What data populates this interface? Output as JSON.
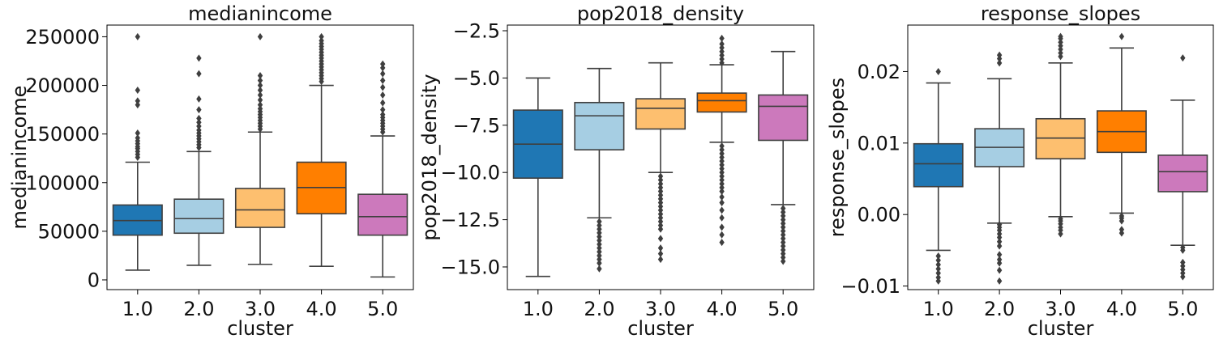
{
  "chart_data": [
    {
      "type": "box",
      "title": "medianincome",
      "xlabel": "cluster",
      "ylabel": "medianincome",
      "categories": [
        "1.0",
        "2.0",
        "3.0",
        "4.0",
        "5.0"
      ],
      "colors": [
        "#1f77b4",
        "#a6cee3",
        "#fdbf6f",
        "#ff7f00",
        "#cc79bc"
      ],
      "ylim": [
        -10000,
        262000
      ],
      "yticks": [
        0,
        50000,
        100000,
        150000,
        200000,
        250000
      ],
      "ytick_labels": [
        "0",
        "50000",
        "100000",
        "150000",
        "200000",
        "250000"
      ],
      "boxes": [
        {
          "whislo": 10000,
          "q1": 46000,
          "median": 61000,
          "q3": 77000,
          "whishi": 121000,
          "fliers": [
            126000,
            129000,
            132000,
            135000,
            137000,
            140000,
            143000,
            146000,
            151000,
            180000,
            184000,
            195000,
            250000
          ]
        },
        {
          "whislo": 15000,
          "q1": 48000,
          "median": 63000,
          "q3": 83000,
          "whishi": 132000,
          "fliers": [
            136000,
            139000,
            142000,
            145000,
            148000,
            151000,
            154000,
            158000,
            162000,
            166000,
            175000,
            186000,
            212000,
            228000
          ]
        },
        {
          "whislo": 16000,
          "q1": 54000,
          "median": 72000,
          "q3": 94000,
          "whishi": 152000,
          "fliers": [
            155000,
            158000,
            161000,
            164000,
            167000,
            170000,
            173000,
            176000,
            180000,
            185000,
            190000,
            195000,
            200000,
            205000,
            210000,
            250000
          ]
        },
        {
          "whislo": 14000,
          "q1": 68000,
          "median": 95000,
          "q3": 121000,
          "whishi": 200000,
          "fliers": [
            204000,
            207000,
            210000,
            213000,
            216000,
            219000,
            222000,
            225000,
            228000,
            231000,
            234000,
            237000,
            240000,
            243000,
            246000,
            250000
          ]
        },
        {
          "whislo": 3000,
          "q1": 46000,
          "median": 65000,
          "q3": 88000,
          "whishi": 148000,
          "fliers": [
            152000,
            155000,
            158000,
            161000,
            164000,
            167000,
            170000,
            175000,
            182000,
            190000,
            198000,
            205000,
            212000,
            218000,
            222000
          ]
        }
      ]
    },
    {
      "type": "box",
      "title": "pop2018_density",
      "xlabel": "cluster",
      "ylabel": "pop2018_density",
      "categories": [
        "1.0",
        "2.0",
        "3.0",
        "4.0",
        "5.0"
      ],
      "colors": [
        "#1f77b4",
        "#a6cee3",
        "#fdbf6f",
        "#ff7f00",
        "#cc79bc"
      ],
      "ylim": [
        -16.2,
        -2.2
      ],
      "yticks": [
        -15.0,
        -12.5,
        -10.0,
        -7.5,
        -5.0,
        -2.5
      ],
      "ytick_labels": [
        "−15.0",
        "−12.5",
        "−10.0",
        "−7.5",
        "−5.0",
        "−2.5"
      ],
      "boxes": [
        {
          "whislo": -15.5,
          "q1": -10.3,
          "median": -8.5,
          "q3": -6.7,
          "whishi": -5.0,
          "fliers": []
        },
        {
          "whislo": -12.4,
          "q1": -8.8,
          "median": -7.0,
          "q3": -6.3,
          "whishi": -4.5,
          "fliers": [
            -12.6,
            -12.8,
            -13.0,
            -13.2,
            -13.4,
            -13.6,
            -13.8,
            -14.0,
            -14.2,
            -14.4,
            -14.6,
            -14.8,
            -15.1
          ]
        },
        {
          "whislo": -10.0,
          "q1": -7.7,
          "median": -6.6,
          "q3": -6.1,
          "whishi": -4.2,
          "fliers": [
            -10.2,
            -10.4,
            -10.6,
            -10.8,
            -11.0,
            -11.2,
            -11.4,
            -11.6,
            -11.8,
            -12.0,
            -12.2,
            -12.4,
            -12.6,
            -12.8,
            -13.0,
            -13.5,
            -14.0,
            -14.3,
            -14.6
          ]
        },
        {
          "whislo": -8.4,
          "q1": -6.8,
          "median": -6.2,
          "q3": -5.8,
          "whishi": -4.3,
          "fliers": [
            -4.2,
            -4.0,
            -3.8,
            -3.6,
            -3.4,
            -3.2,
            -2.9,
            -8.6,
            -8.8,
            -9.0,
            -9.2,
            -9.4,
            -9.6,
            -9.8,
            -10.0,
            -10.2,
            -10.4,
            -10.6,
            -10.8,
            -11.0,
            -11.3,
            -11.6,
            -12.0,
            -12.4,
            -12.9,
            -13.3,
            -13.7
          ]
        },
        {
          "whislo": -11.7,
          "q1": -8.3,
          "median": -6.5,
          "q3": -5.9,
          "whishi": -3.6,
          "fliers": [
            -11.9,
            -12.1,
            -12.3,
            -12.5,
            -12.7,
            -12.9,
            -13.1,
            -13.3,
            -13.5,
            -13.7,
            -13.9,
            -14.1,
            -14.3,
            -14.5,
            -14.7
          ]
        }
      ]
    },
    {
      "type": "box",
      "title": "response_slopes",
      "xlabel": "cluster",
      "ylabel": "response_slopes",
      "categories": [
        "1.0",
        "2.0",
        "3.0",
        "4.0",
        "5.0"
      ],
      "colors": [
        "#1f77b4",
        "#a6cee3",
        "#fdbf6f",
        "#ff7f00",
        "#cc79bc"
      ],
      "ylim": [
        -0.0105,
        0.0265
      ],
      "yticks": [
        -0.01,
        0.0,
        0.01,
        0.02
      ],
      "ytick_labels": [
        "−0.01",
        "0.00",
        "0.01",
        "0.02"
      ],
      "boxes": [
        {
          "whislo": -0.005,
          "q1": 0.0039,
          "median": 0.0071,
          "q3": 0.0099,
          "whishi": 0.0184,
          "fliers": [
            0.02,
            -0.0058,
            -0.0064,
            -0.007,
            -0.0076,
            -0.0082,
            -0.0088,
            -0.0093
          ]
        },
        {
          "whislo": -0.0012,
          "q1": 0.0067,
          "median": 0.0094,
          "q3": 0.012,
          "whishi": 0.019,
          "fliers": [
            0.0212,
            0.0218,
            0.0223,
            -0.0014,
            -0.0018,
            -0.0022,
            -0.0027,
            -0.0032,
            -0.0038,
            -0.0044,
            -0.0056,
            -0.0063,
            -0.0068,
            -0.0078,
            -0.0093
          ]
        },
        {
          "whislo": -0.0003,
          "q1": 0.0078,
          "median": 0.0107,
          "q3": 0.0134,
          "whishi": 0.0212,
          "fliers": [
            0.0221,
            0.0226,
            0.0231,
            0.0236,
            0.0241,
            0.0246,
            0.0249,
            -0.0006,
            -0.0009,
            -0.0013,
            -0.0018,
            -0.0022,
            -0.0027
          ]
        },
        {
          "whislo": 0.0002,
          "q1": 0.0087,
          "median": 0.0116,
          "q3": 0.0145,
          "whishi": 0.0233,
          "fliers": [
            0.0249,
            -0.0002,
            -0.0005,
            -0.0009,
            -0.0021,
            -0.0026
          ]
        },
        {
          "whislo": -0.0043,
          "q1": 0.0032,
          "median": 0.006,
          "q3": 0.0083,
          "whishi": 0.016,
          "fliers": [
            0.0219,
            -0.0046,
            -0.005,
            -0.0067,
            -0.0072,
            -0.0077,
            -0.0082,
            -0.0087
          ]
        }
      ]
    }
  ]
}
